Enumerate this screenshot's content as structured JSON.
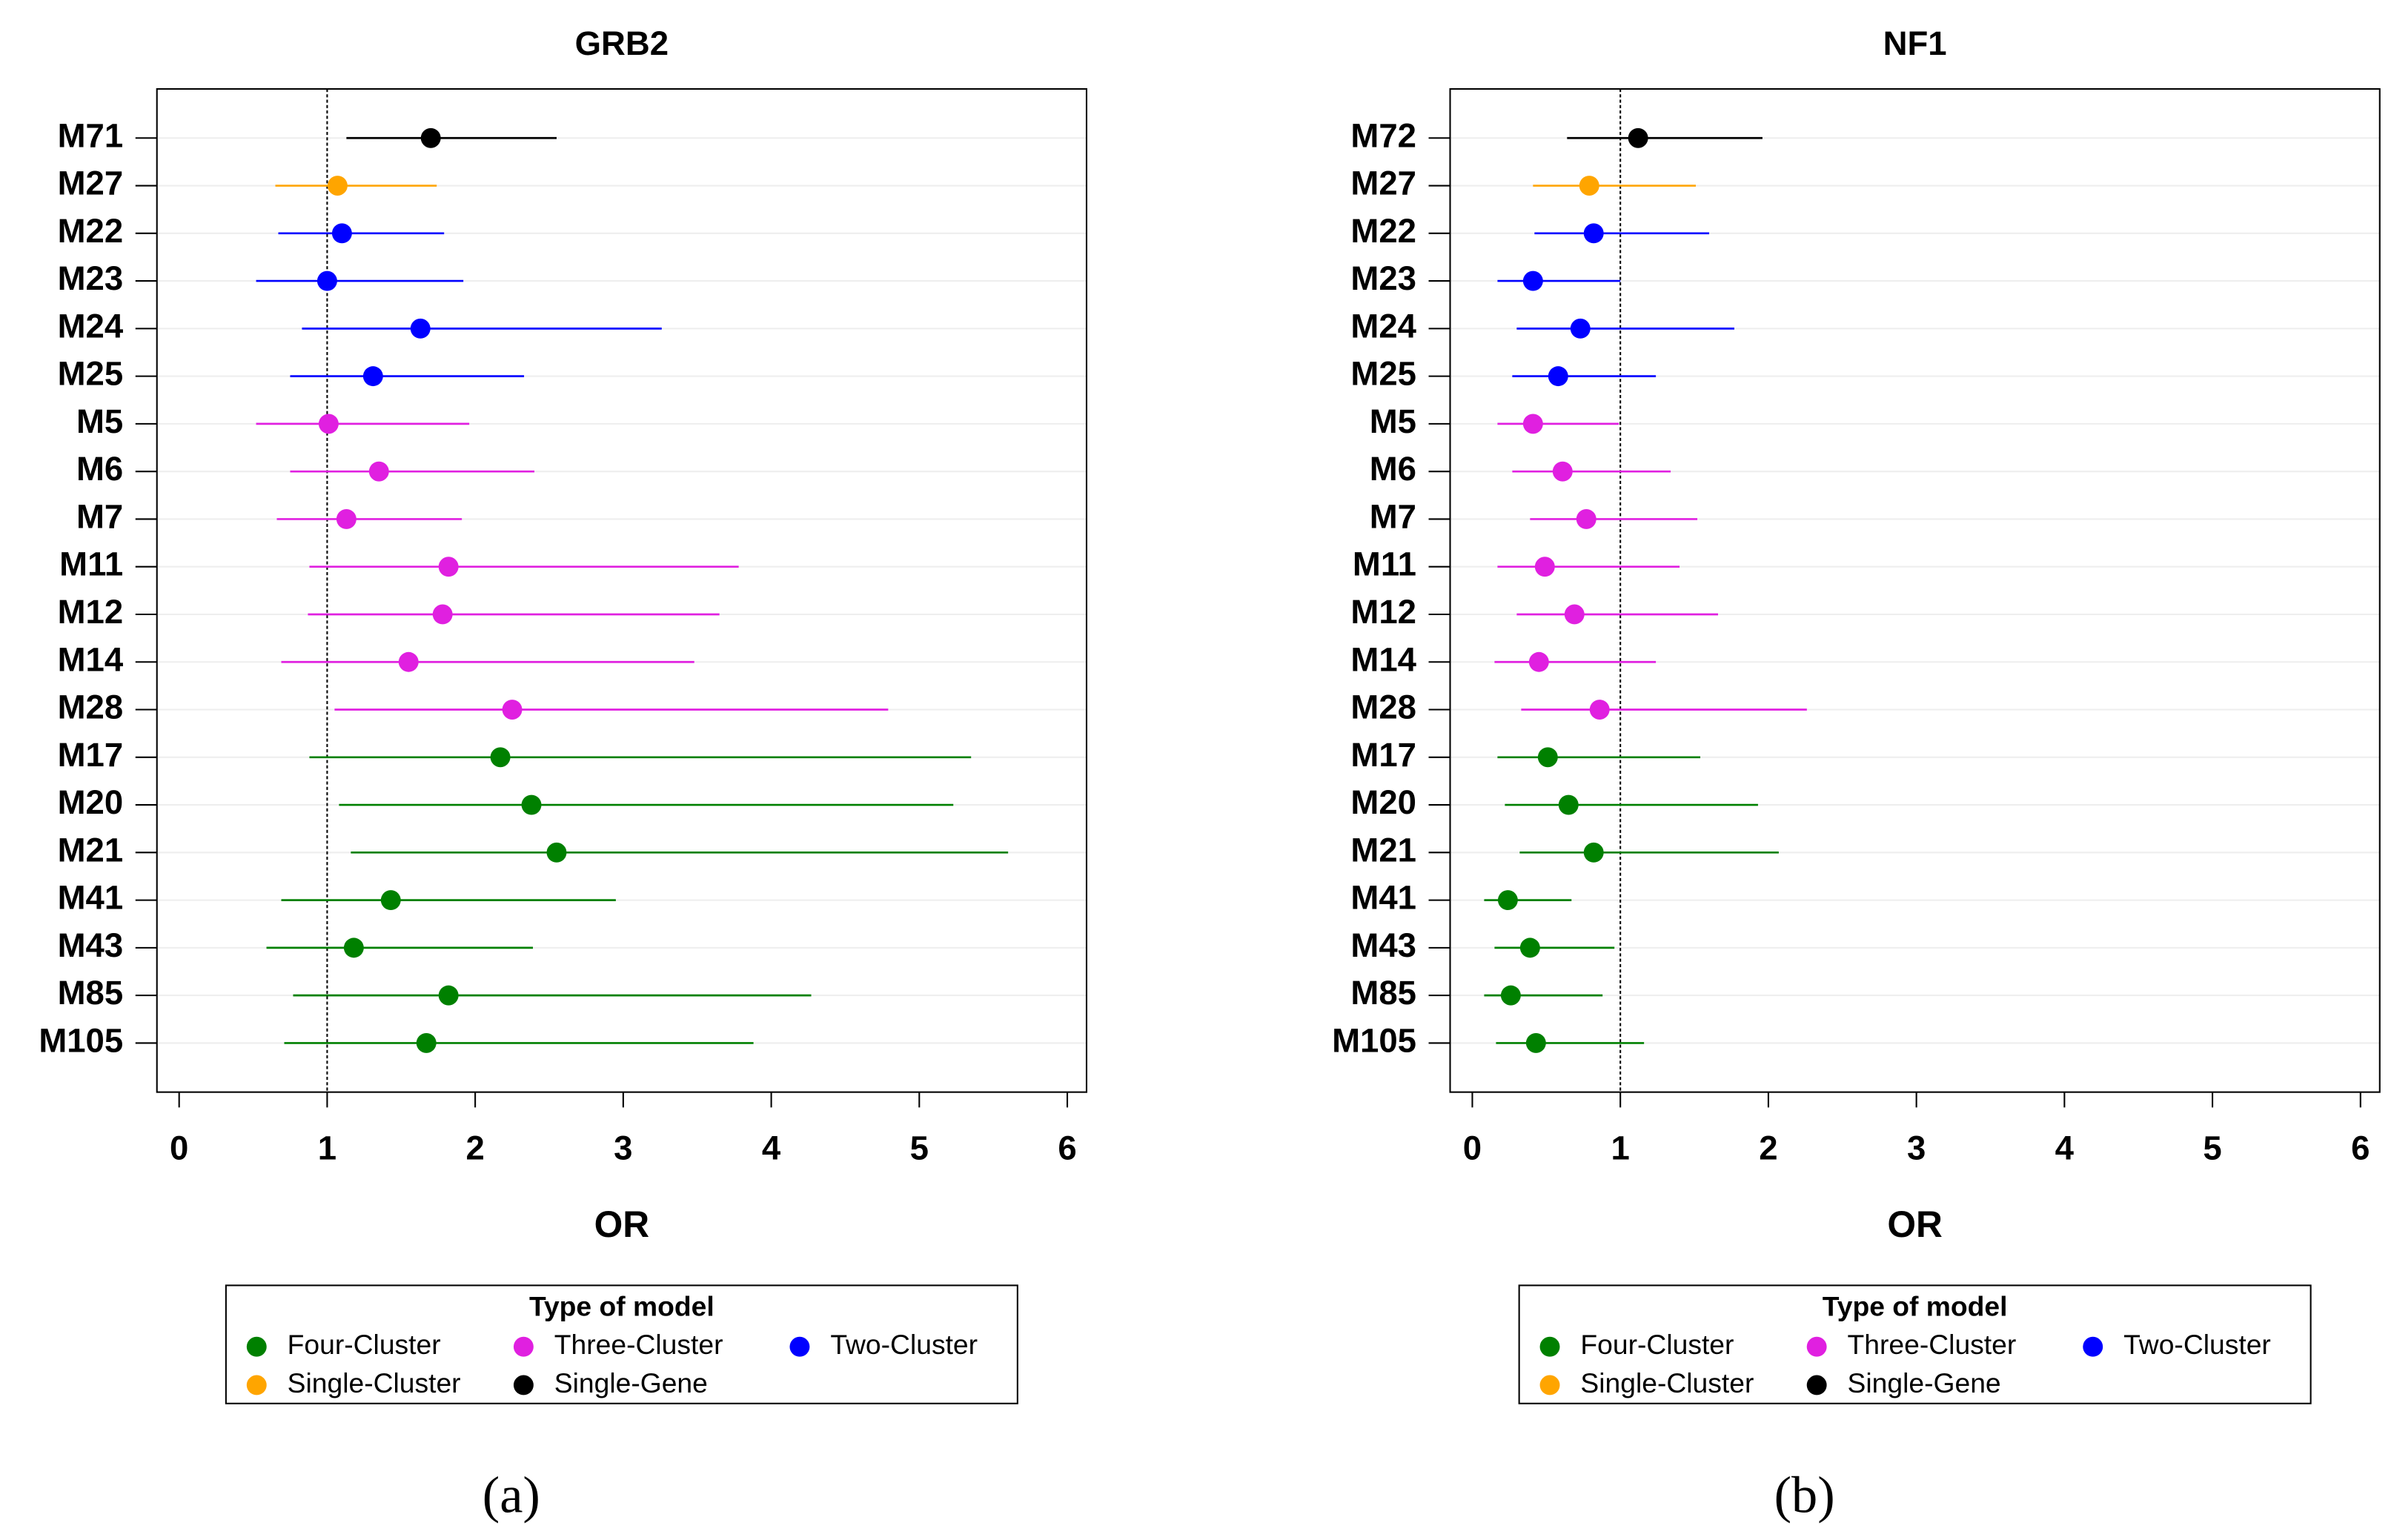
{
  "chart_data": [
    {
      "type": "forest",
      "title": "GRB2",
      "xlabel": "OR",
      "panel_label": "(a)",
      "legend_title": "Type of model",
      "xlim": [
        -0.15,
        6.13
      ],
      "xticks": [
        0,
        1,
        2,
        3,
        4,
        5,
        6
      ],
      "refline": 1,
      "series": [
        {
          "name": "Four-Cluster",
          "color": "#008000",
          "categories": [
            "M17",
            "M20",
            "M21",
            "M41",
            "M43",
            "M85",
            "M105"
          ],
          "values": [
            2.17,
            2.38,
            2.55,
            1.43,
            1.18,
            1.82,
            1.67
          ],
          "lower": [
            0.88,
            1.08,
            1.16,
            0.69,
            0.59,
            0.77,
            0.71
          ],
          "upper": [
            5.35,
            5.23,
            5.6,
            2.95,
            2.39,
            4.27,
            3.88
          ]
        },
        {
          "name": "Three-Cluster",
          "color": "#e020e0",
          "categories": [
            "M5",
            "M6",
            "M7",
            "M11",
            "M12",
            "M14",
            "M28"
          ],
          "values": [
            1.01,
            1.35,
            1.13,
            1.82,
            1.78,
            1.55,
            2.25
          ],
          "lower": [
            0.52,
            0.75,
            0.66,
            0.88,
            0.87,
            0.69,
            1.05
          ],
          "upper": [
            1.96,
            2.4,
            1.91,
            3.78,
            3.65,
            3.48,
            4.79
          ]
        },
        {
          "name": "Two-Cluster",
          "color": "#0000ff",
          "categories": [
            "M22",
            "M23",
            "M24",
            "M25"
          ],
          "values": [
            1.1,
            1.0,
            1.63,
            1.31
          ],
          "lower": [
            0.67,
            0.52,
            0.83,
            0.75
          ],
          "upper": [
            1.79,
            1.92,
            3.26,
            2.33
          ]
        },
        {
          "name": "Single-Cluster",
          "color": "#ffa500",
          "categories": [
            "M27"
          ],
          "values": [
            1.07
          ],
          "lower": [
            0.65
          ],
          "upper": [
            1.74
          ]
        },
        {
          "name": "Single-Gene",
          "color": "#000000",
          "categories": [
            "M71"
          ],
          "values": [
            1.7
          ],
          "lower": [
            1.13
          ],
          "upper": [
            2.55
          ]
        }
      ]
    },
    {
      "type": "forest",
      "title": "NF1",
      "xlabel": "OR",
      "panel_label": "(b)",
      "legend_title": "Type of model",
      "xlim": [
        -0.15,
        6.13
      ],
      "xticks": [
        0,
        1,
        2,
        3,
        4,
        5,
        6
      ],
      "refline": 1,
      "series": [
        {
          "name": "Four-Cluster",
          "color": "#008000",
          "categories": [
            "M17",
            "M20",
            "M21",
            "M41",
            "M43",
            "M85",
            "M105"
          ],
          "values": [
            0.51,
            0.65,
            0.82,
            0.24,
            0.39,
            0.26,
            0.43
          ],
          "lower": [
            0.17,
            0.22,
            0.32,
            0.08,
            0.15,
            0.08,
            0.16
          ],
          "upper": [
            1.54,
            1.93,
            2.07,
            0.67,
            0.96,
            0.88,
            1.16
          ]
        },
        {
          "name": "Three-Cluster",
          "color": "#e020e0",
          "categories": [
            "M5",
            "M6",
            "M7",
            "M11",
            "M12",
            "M14",
            "M28"
          ],
          "values": [
            0.41,
            0.61,
            0.77,
            0.49,
            0.69,
            0.45,
            0.86
          ],
          "lower": [
            0.17,
            0.27,
            0.39,
            0.17,
            0.3,
            0.15,
            0.33
          ],
          "upper": [
            0.99,
            1.34,
            1.52,
            1.4,
            1.66,
            1.24,
            2.26
          ]
        },
        {
          "name": "Two-Cluster",
          "color": "#0000ff",
          "categories": [
            "M22",
            "M23",
            "M24",
            "M25"
          ],
          "values": [
            0.82,
            0.41,
            0.73,
            0.58
          ],
          "lower": [
            0.42,
            0.17,
            0.3,
            0.27
          ],
          "upper": [
            1.6,
            1.0,
            1.77,
            1.24
          ]
        },
        {
          "name": "Single-Cluster",
          "color": "#ffa500",
          "categories": [
            "M27"
          ],
          "values": [
            0.79
          ],
          "lower": [
            0.41
          ],
          "upper": [
            1.51
          ]
        },
        {
          "name": "Single-Gene",
          "color": "#000000",
          "categories": [
            "M72"
          ],
          "values": [
            1.12
          ],
          "lower": [
            0.64
          ],
          "upper": [
            1.96
          ]
        }
      ]
    }
  ]
}
